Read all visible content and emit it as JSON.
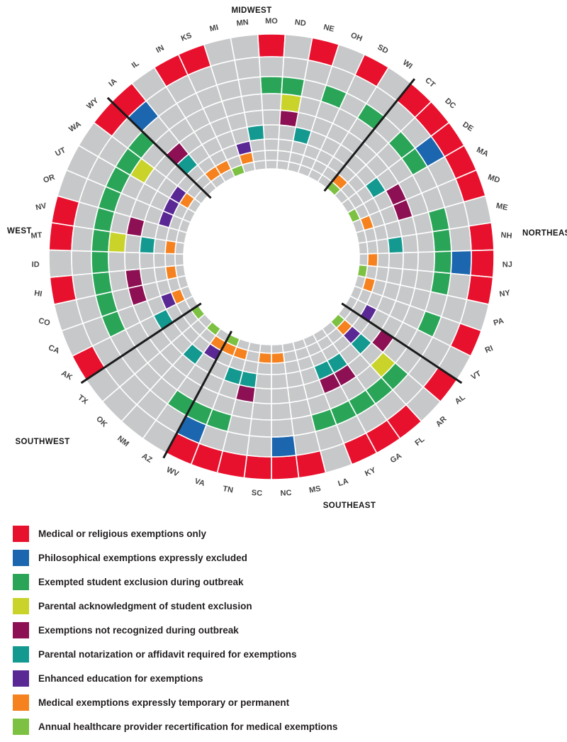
{
  "chart_data": {
    "type": "heatmap",
    "subtype": "radial-ring-heatmap",
    "rings_order": "outer-to-inner",
    "empty_cell_color": "#c7c8ca",
    "divider_color": "#1a1a1a",
    "categories": [
      {
        "ring": 1,
        "label": "Medical or religious exemptions only",
        "color": "#e8112d"
      },
      {
        "ring": 2,
        "label": "Philosophical exemptions expressly excluded",
        "color": "#1b66ae"
      },
      {
        "ring": 3,
        "label": "Exempted student exclusion during outbreak",
        "color": "#2aa558"
      },
      {
        "ring": 4,
        "label": "Parental acknowledgment of student exclusion",
        "color": "#c9d32a"
      },
      {
        "ring": 5,
        "label": "Exemptions not recognized during outbreak",
        "color": "#8c1053"
      },
      {
        "ring": 6,
        "label": "Parental notarization or affidavit required for exemptions",
        "color": "#13998f"
      },
      {
        "ring": 7,
        "label": "Enhanced education for exemptions",
        "color": "#5a2894"
      },
      {
        "ring": 8,
        "label": "Medical exemptions expressly temporary or permanent",
        "color": "#f5821f"
      },
      {
        "ring": 9,
        "label": "Annual healthcare provider recertification for medical exemptions",
        "color": "#7dc142"
      }
    ],
    "regions": [
      "MIDWEST",
      "NORTHEAST",
      "SOUTHEAST",
      "SOUTHWEST",
      "WEST"
    ],
    "states": [
      {
        "abbr": "MO",
        "region": "MIDWEST",
        "rings": [
          1,
          3
        ]
      },
      {
        "abbr": "ND",
        "region": "MIDWEST",
        "rings": [
          3,
          4,
          5
        ]
      },
      {
        "abbr": "NE",
        "region": "MIDWEST",
        "rings": [
          1,
          6
        ]
      },
      {
        "abbr": "OH",
        "region": "MIDWEST",
        "rings": [
          3
        ]
      },
      {
        "abbr": "SD",
        "region": "MIDWEST",
        "rings": [
          1
        ]
      },
      {
        "abbr": "WI",
        "region": "MIDWEST",
        "rings": [
          3
        ]
      },
      {
        "abbr": "CT",
        "region": "NORTHEAST",
        "rings": [
          1,
          8,
          9
        ]
      },
      {
        "abbr": "DC",
        "region": "NORTHEAST",
        "rings": [
          1,
          3
        ]
      },
      {
        "abbr": "DE",
        "region": "NORTHEAST",
        "rings": [
          1,
          2,
          3,
          6
        ]
      },
      {
        "abbr": "MA",
        "region": "NORTHEAST",
        "rings": [
          1,
          5,
          9
        ]
      },
      {
        "abbr": "MD",
        "region": "NORTHEAST",
        "rings": [
          1,
          5,
          8
        ]
      },
      {
        "abbr": "ME",
        "region": "NORTHEAST",
        "rings": [
          3
        ]
      },
      {
        "abbr": "NH",
        "region": "NORTHEAST",
        "rings": [
          1,
          3,
          6
        ]
      },
      {
        "abbr": "NJ",
        "region": "NORTHEAST",
        "rings": [
          1,
          2,
          3,
          8
        ]
      },
      {
        "abbr": "NY",
        "region": "NORTHEAST",
        "rings": [
          1,
          3,
          9
        ]
      },
      {
        "abbr": "PA",
        "region": "NORTHEAST",
        "rings": [
          8
        ]
      },
      {
        "abbr": "RI",
        "region": "NORTHEAST",
        "rings": [
          1,
          3
        ]
      },
      {
        "abbr": "VT",
        "region": "NORTHEAST",
        "rings": [
          7
        ]
      },
      {
        "abbr": "AL",
        "region": "SOUTHEAST",
        "rings": [
          1,
          5
        ]
      },
      {
        "abbr": "AR",
        "region": "SOUTHEAST",
        "rings": [
          3,
          4,
          6,
          7,
          8,
          9
        ]
      },
      {
        "abbr": "FL",
        "region": "SOUTHEAST",
        "rings": [
          1,
          3
        ]
      },
      {
        "abbr": "GA",
        "region": "SOUTHEAST",
        "rings": [
          1,
          3,
          5,
          6
        ]
      },
      {
        "abbr": "KY",
        "region": "SOUTHEAST",
        "rings": [
          1,
          3,
          5,
          6
        ]
      },
      {
        "abbr": "LA",
        "region": "SOUTHEAST",
        "rings": [
          3
        ]
      },
      {
        "abbr": "MS",
        "region": "SOUTHEAST",
        "rings": [
          1
        ]
      },
      {
        "abbr": "NC",
        "region": "SOUTHEAST",
        "rings": [
          1,
          2,
          8
        ]
      },
      {
        "abbr": "SC",
        "region": "SOUTHEAST",
        "rings": [
          1,
          8
        ]
      },
      {
        "abbr": "TN",
        "region": "SOUTHEAST",
        "rings": [
          1,
          5,
          6
        ]
      },
      {
        "abbr": "VA",
        "region": "SOUTHEAST",
        "rings": [
          1,
          3,
          6,
          8
        ]
      },
      {
        "abbr": "WV",
        "region": "SOUTHEAST",
        "rings": [
          1,
          2,
          3,
          8,
          9
        ]
      },
      {
        "abbr": "AZ",
        "region": "SOUTHWEST",
        "rings": [
          3,
          7,
          8
        ]
      },
      {
        "abbr": "NM",
        "region": "SOUTHWEST",
        "rings": [
          6,
          9
        ]
      },
      {
        "abbr": "OK",
        "region": "SOUTHWEST",
        "rings": []
      },
      {
        "abbr": "TX",
        "region": "SOUTHWEST",
        "rings": [
          9
        ]
      },
      {
        "abbr": "AK",
        "region": "WEST",
        "rings": [
          1,
          6
        ]
      },
      {
        "abbr": "CA",
        "region": "WEST",
        "rings": [
          3,
          7,
          8
        ]
      },
      {
        "abbr": "CO",
        "region": "WEST",
        "rings": [
          3,
          5
        ]
      },
      {
        "abbr": "HI",
        "region": "WEST",
        "rings": [
          1,
          3,
          5,
          8
        ]
      },
      {
        "abbr": "ID",
        "region": "WEST",
        "rings": [
          3
        ]
      },
      {
        "abbr": "MT",
        "region": "WEST",
        "rings": [
          1,
          3,
          4,
          6,
          8
        ]
      },
      {
        "abbr": "NV",
        "region": "WEST",
        "rings": [
          1,
          3,
          5
        ]
      },
      {
        "abbr": "OR",
        "region": "WEST",
        "rings": [
          3,
          7
        ]
      },
      {
        "abbr": "UT",
        "region": "WEST",
        "rings": [
          3,
          7
        ]
      },
      {
        "abbr": "WA",
        "region": "WEST",
        "rings": [
          3,
          4,
          7,
          8
        ]
      },
      {
        "abbr": "WY",
        "region": "WEST",
        "rings": [
          1,
          3
        ]
      },
      {
        "abbr": "IA",
        "region": "MIDWEST",
        "rings": [
          1,
          2,
          5,
          6
        ]
      },
      {
        "abbr": "IL",
        "region": "MIDWEST",
        "rings": [
          8
        ]
      },
      {
        "abbr": "IN",
        "region": "MIDWEST",
        "rings": [
          1,
          8
        ]
      },
      {
        "abbr": "KS",
        "region": "MIDWEST",
        "rings": [
          1,
          9
        ]
      },
      {
        "abbr": "MI",
        "region": "MIDWEST",
        "rings": [
          7,
          8
        ]
      },
      {
        "abbr": "MN",
        "region": "MIDWEST",
        "rings": [
          6
        ]
      }
    ]
  }
}
